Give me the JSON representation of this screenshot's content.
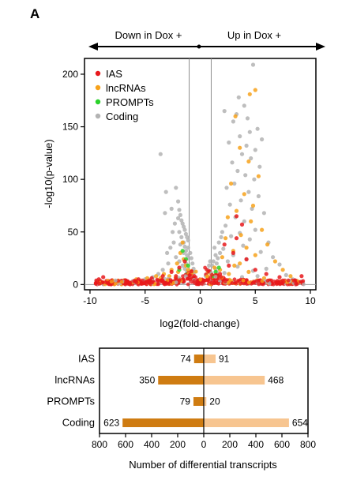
{
  "panel_label": "A",
  "volcano": {
    "arrow_left": "Down in Dox +",
    "arrow_right": "Up in Dox +",
    "legend": [
      {
        "label": "IAS",
        "color": "#e8191c"
      },
      {
        "label": "lncRNAs",
        "color": "#f7a21b"
      },
      {
        "label": "PROMPTs",
        "color": "#2bd22b"
      },
      {
        "label": "Coding",
        "color": "#b3b3b3"
      }
    ],
    "threshold_lines_x": [
      -1,
      1
    ]
  },
  "chart_data": [
    {
      "type": "scatter",
      "xlabel": "log2(fold-change)",
      "ylabel": "-log10(p-value)",
      "xlim": [
        -10.5,
        10.5
      ],
      "ylim": [
        -5,
        215
      ],
      "x_ticks": [
        -10,
        -5,
        0,
        5,
        10
      ],
      "y_ticks": [
        0,
        50,
        100,
        150,
        200
      ],
      "grid": false,
      "legend_position": "top-left",
      "series": [
        {
          "name": "Coding",
          "color": "#b3b3b3",
          "points": [
            [
              4.8,
              209
            ],
            [
              3.5,
              178
            ],
            [
              4.0,
              170
            ],
            [
              2.2,
              165
            ],
            [
              3.3,
              162
            ],
            [
              4.3,
              158
            ],
            [
              3.0,
              155
            ],
            [
              5.2,
              148
            ],
            [
              4.5,
              145
            ],
            [
              3.6,
              141
            ],
            [
              5.6,
              138
            ],
            [
              2.6,
              135
            ],
            [
              4.2,
              132
            ],
            [
              5.0,
              128
            ],
            [
              3.8,
              124
            ],
            [
              4.6,
              120
            ],
            [
              2.9,
              116
            ],
            [
              5.4,
              112
            ],
            [
              3.4,
              108
            ],
            [
              4.1,
              104
            ],
            [
              4.9,
              100
            ],
            [
              3.1,
              96
            ],
            [
              2.4,
              92
            ],
            [
              4.4,
              88
            ],
            [
              5.3,
              84
            ],
            [
              3.7,
              80
            ],
            [
              2.7,
              76
            ],
            [
              4.7,
              72
            ],
            [
              5.8,
              68
            ],
            [
              3.2,
              64
            ],
            [
              4.0,
              60
            ],
            [
              2.3,
              56
            ],
            [
              5.0,
              52
            ],
            [
              3.6,
              49
            ],
            [
              2.8,
              46
            ],
            [
              4.5,
              43
            ],
            [
              6.2,
              40
            ],
            [
              3.9,
              37
            ],
            [
              2.1,
              34
            ],
            [
              5.5,
              31
            ],
            [
              3.0,
              28
            ],
            [
              6.6,
              26
            ],
            [
              4.2,
              24
            ],
            [
              2.5,
              22
            ],
            [
              7.2,
              19
            ],
            [
              3.4,
              17
            ],
            [
              6.0,
              15
            ],
            [
              4.8,
              13
            ],
            [
              2.2,
              11
            ],
            [
              7.8,
              9
            ],
            [
              5.2,
              8
            ],
            [
              3.8,
              7
            ],
            [
              8.4,
              5
            ],
            [
              1.8,
              30
            ],
            [
              1.6,
              25
            ],
            [
              1.5,
              20
            ],
            [
              1.4,
              15
            ],
            [
              1.3,
              35
            ],
            [
              1.7,
              40
            ],
            [
              1.9,
              45
            ],
            [
              1.2,
              22
            ],
            [
              1.1,
              18
            ],
            [
              1.5,
              12
            ],
            [
              2.0,
              50
            ],
            [
              1.4,
              28
            ],
            [
              -3.6,
              124
            ],
            [
              -3.1,
              88
            ],
            [
              -2.6,
              72
            ],
            [
              -3.2,
              68
            ],
            [
              -2.2,
              92
            ],
            [
              -2.0,
              79
            ],
            [
              -1.9,
              71
            ],
            [
              -1.8,
              66
            ],
            [
              -1.7,
              61
            ],
            [
              -1.6,
              58
            ],
            [
              -1.5,
              55
            ],
            [
              -1.4,
              52
            ],
            [
              -1.3,
              48
            ],
            [
              -1.2,
              45
            ],
            [
              -1.1,
              42
            ],
            [
              -1.9,
              50
            ],
            [
              -1.7,
              45
            ],
            [
              -1.5,
              40
            ],
            [
              -1.4,
              36
            ],
            [
              -1.3,
              32
            ],
            [
              -1.2,
              28
            ],
            [
              -1.1,
              25
            ],
            [
              -2.4,
              40
            ],
            [
              -2.7,
              35
            ],
            [
              -3.0,
              30
            ],
            [
              -2.2,
              26
            ],
            [
              -1.9,
              22
            ],
            [
              -1.6,
              18
            ],
            [
              -1.4,
              15
            ],
            [
              -1.2,
              12
            ],
            [
              -2.9,
              20
            ],
            [
              -3.4,
              14
            ],
            [
              -3.8,
              10
            ],
            [
              -4.3,
              7
            ],
            [
              -5.0,
              5
            ],
            [
              -2.3,
              58
            ],
            [
              -2.0,
              63
            ],
            [
              -1.8,
              38
            ],
            [
              -1.5,
              30
            ],
            [
              -2.5,
              50
            ],
            [
              -1.3,
              20
            ],
            [
              -1.1,
              35
            ],
            [
              -0.9,
              30
            ],
            [
              -0.8,
              25
            ],
            [
              -0.7,
              20
            ],
            [
              -0.6,
              15
            ],
            [
              -0.5,
              12
            ],
            [
              -0.9,
              10
            ],
            [
              -0.7,
              8
            ],
            [
              0.9,
              22
            ],
            [
              0.8,
              18
            ],
            [
              0.7,
              14
            ],
            [
              0.6,
              10
            ],
            [
              0.5,
              8
            ],
            [
              0.9,
              12
            ]
          ]
        },
        {
          "name": "lncRNAs",
          "color": "#f7a21b",
          "points": [
            [
              5.0,
              185
            ],
            [
              4.5,
              181
            ],
            [
              3.2,
              160
            ],
            [
              3.6,
              130
            ],
            [
              4.4,
              117
            ],
            [
              5.3,
              103
            ],
            [
              2.8,
              96
            ],
            [
              4.0,
              86
            ],
            [
              4.8,
              75
            ],
            [
              3.3,
              70
            ],
            [
              2.5,
              64
            ],
            [
              4.6,
              60
            ],
            [
              5.6,
              52
            ],
            [
              3.7,
              47
            ],
            [
              2.3,
              44
            ],
            [
              6.1,
              38
            ],
            [
              4.2,
              35
            ],
            [
              3.0,
              32
            ],
            [
              5.0,
              28
            ],
            [
              2.0,
              26
            ],
            [
              6.8,
              22
            ],
            [
              3.6,
              20
            ],
            [
              7.5,
              14
            ],
            [
              4.4,
              12
            ],
            [
              8.2,
              8
            ],
            [
              5.8,
              6
            ],
            [
              2.6,
              10
            ],
            [
              1.8,
              14
            ],
            [
              1.5,
              9
            ],
            [
              1.2,
              6
            ],
            [
              3.1,
              18
            ],
            [
              -1.8,
              30
            ],
            [
              -1.5,
              24
            ],
            [
              -1.3,
              18
            ],
            [
              -2.1,
              20
            ],
            [
              -2.6,
              14
            ],
            [
              -3.3,
              10
            ],
            [
              -4.0,
              8
            ],
            [
              -4.8,
              6
            ],
            [
              -5.8,
              5
            ],
            [
              -6.9,
              4
            ],
            [
              -8.0,
              3
            ],
            [
              -1.1,
              14
            ],
            [
              -0.8,
              10
            ],
            [
              -1.6,
              40
            ],
            [
              -2.0,
              12
            ],
            [
              -2.8,
              8
            ],
            [
              -3.6,
              6
            ],
            [
              -0.6,
              6
            ],
            [
              0.7,
              6
            ],
            [
              1.0,
              10
            ],
            [
              1.3,
              16
            ]
          ]
        },
        {
          "name": "PROMPTs",
          "color": "#2bd22b",
          "points": [
            [
              -1.6,
              32
            ],
            [
              -1.3,
              24
            ],
            [
              -1.1,
              18
            ],
            [
              -1.9,
              14
            ],
            [
              -1.2,
              10
            ],
            [
              1.4,
              12
            ],
            [
              1.2,
              8
            ],
            [
              1.7,
              16
            ]
          ]
        },
        {
          "name": "IAS",
          "color": "#e8191c",
          "points": [
            [
              3.3,
              65
            ],
            [
              3.8,
              57
            ],
            [
              3.3,
              44
            ],
            [
              2.2,
              38
            ],
            [
              3.0,
              30
            ],
            [
              4.2,
              24
            ],
            [
              2.6,
              18
            ],
            [
              5.0,
              14
            ],
            [
              6.0,
              10
            ],
            [
              7.2,
              7
            ],
            [
              8.6,
              4
            ],
            [
              9.2,
              8
            ],
            [
              1.8,
              10
            ],
            [
              1.5,
              6
            ],
            [
              1.2,
              4
            ],
            [
              -1.4,
              22
            ],
            [
              -1.9,
              16
            ],
            [
              -2.6,
              12
            ],
            [
              -3.4,
              8
            ],
            [
              -4.4,
              6
            ],
            [
              -5.6,
              5
            ],
            [
              -6.8,
              4
            ],
            [
              -8.0,
              4
            ],
            [
              -8.8,
              7
            ],
            [
              -9.2,
              5
            ],
            [
              -1.1,
              10
            ],
            [
              -0.7,
              6
            ],
            [
              0.7,
              5
            ],
            [
              -2.2,
              8
            ]
          ]
        }
      ]
    },
    {
      "type": "bar",
      "orientation": "horizontal",
      "xlabel": "Number of differential transcripts",
      "categories": [
        "IAS",
        "lncRNAs",
        "PROMPTs",
        "Coding"
      ],
      "xlim": [
        -800,
        800
      ],
      "x_ticks": [
        -800,
        -600,
        -400,
        -200,
        0,
        200,
        400,
        600,
        800
      ],
      "x_tick_labels": [
        "800",
        "600",
        "400",
        "200",
        "0",
        "200",
        "400",
        "600",
        "800"
      ],
      "series": [
        {
          "color": "#cf7c12",
          "direction": "left",
          "values": [
            74,
            350,
            79,
            623
          ]
        },
        {
          "color": "#f7c590",
          "direction": "right",
          "values": [
            91,
            468,
            20,
            654
          ]
        }
      ]
    }
  ]
}
